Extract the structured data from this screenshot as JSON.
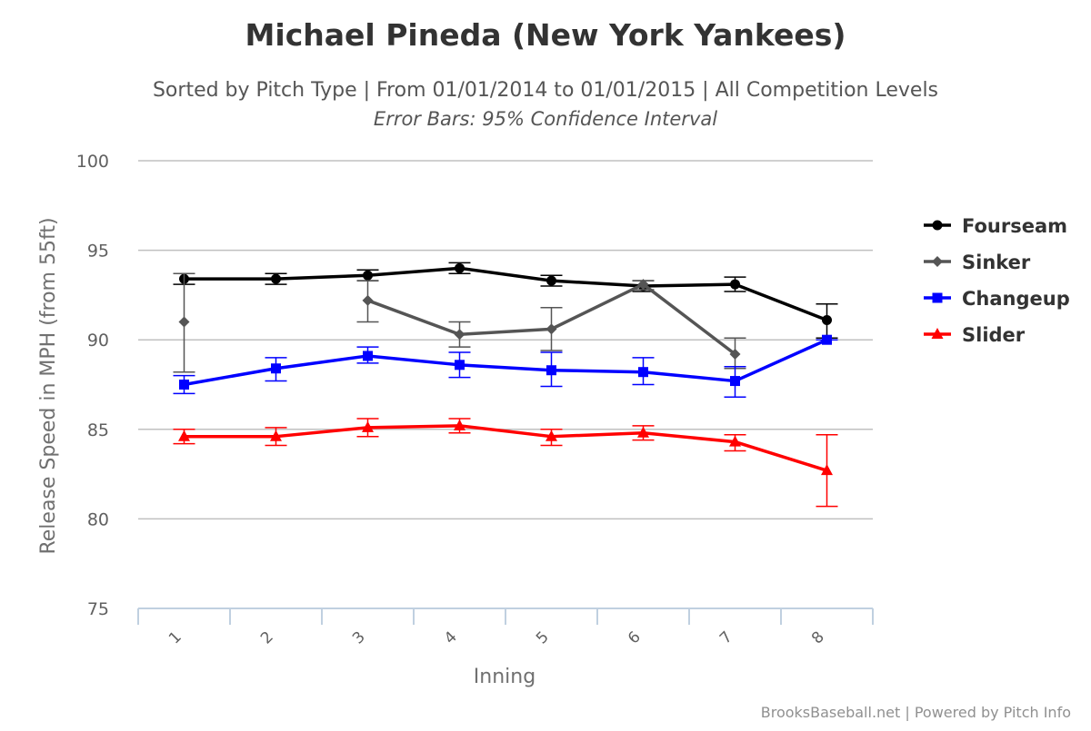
{
  "chart_data": {
    "type": "line",
    "title": "Michael Pineda (New York Yankees)",
    "subtitle": "Sorted by Pitch Type | From 01/01/2014 to 01/01/2015 | All Competition Levels",
    "subtitle2": "Error Bars: 95% Confidence Interval",
    "xlabel": "Inning",
    "ylabel": "Release Speed in MPH (from 55ft)",
    "categories": [
      "1",
      "2",
      "3",
      "4",
      "5",
      "6",
      "7",
      "8"
    ],
    "ylim": [
      75,
      100
    ],
    "yticks": [
      75,
      80,
      85,
      90,
      95,
      100
    ],
    "grid": true,
    "legend_position": "right",
    "credits": "BrooksBaseball.net | Powered by Pitch Info",
    "series": [
      {
        "name": "Fourseam",
        "color": "#000000",
        "marker": "circle",
        "values": [
          93.4,
          93.4,
          93.6,
          94.0,
          93.3,
          93.0,
          93.1,
          91.1
        ],
        "low": [
          93.1,
          93.1,
          93.3,
          93.7,
          93.0,
          92.7,
          92.7,
          90.1
        ],
        "high": [
          93.7,
          93.7,
          93.9,
          94.3,
          93.6,
          93.3,
          93.5,
          92.0
        ]
      },
      {
        "name": "Sinker",
        "color": "#555555",
        "marker": "diamond",
        "values": [
          91.0,
          null,
          92.2,
          90.3,
          90.6,
          93.1,
          89.2,
          null
        ],
        "low": [
          88.2,
          null,
          91.0,
          89.6,
          89.4,
          92.8,
          88.4,
          null
        ],
        "high": [
          93.7,
          null,
          93.3,
          91.0,
          91.8,
          93.3,
          90.1,
          null
        ]
      },
      {
        "name": "Changeup",
        "color": "#0000ff",
        "marker": "square",
        "values": [
          87.5,
          88.4,
          89.1,
          88.6,
          88.3,
          88.2,
          87.7,
          90.0
        ],
        "low": [
          87.0,
          87.7,
          88.7,
          87.9,
          87.4,
          87.5,
          86.8,
          90.0
        ],
        "high": [
          88.0,
          89.0,
          89.6,
          89.3,
          89.3,
          89.0,
          88.5,
          90.0
        ]
      },
      {
        "name": "Slider",
        "color": "#ff0000",
        "marker": "triangle",
        "values": [
          84.6,
          84.6,
          85.1,
          85.2,
          84.6,
          84.8,
          84.3,
          82.7
        ],
        "low": [
          84.2,
          84.1,
          84.6,
          84.8,
          84.1,
          84.4,
          83.8,
          80.7
        ],
        "high": [
          85.0,
          85.1,
          85.6,
          85.6,
          85.0,
          85.2,
          84.7,
          84.7
        ]
      }
    ]
  }
}
